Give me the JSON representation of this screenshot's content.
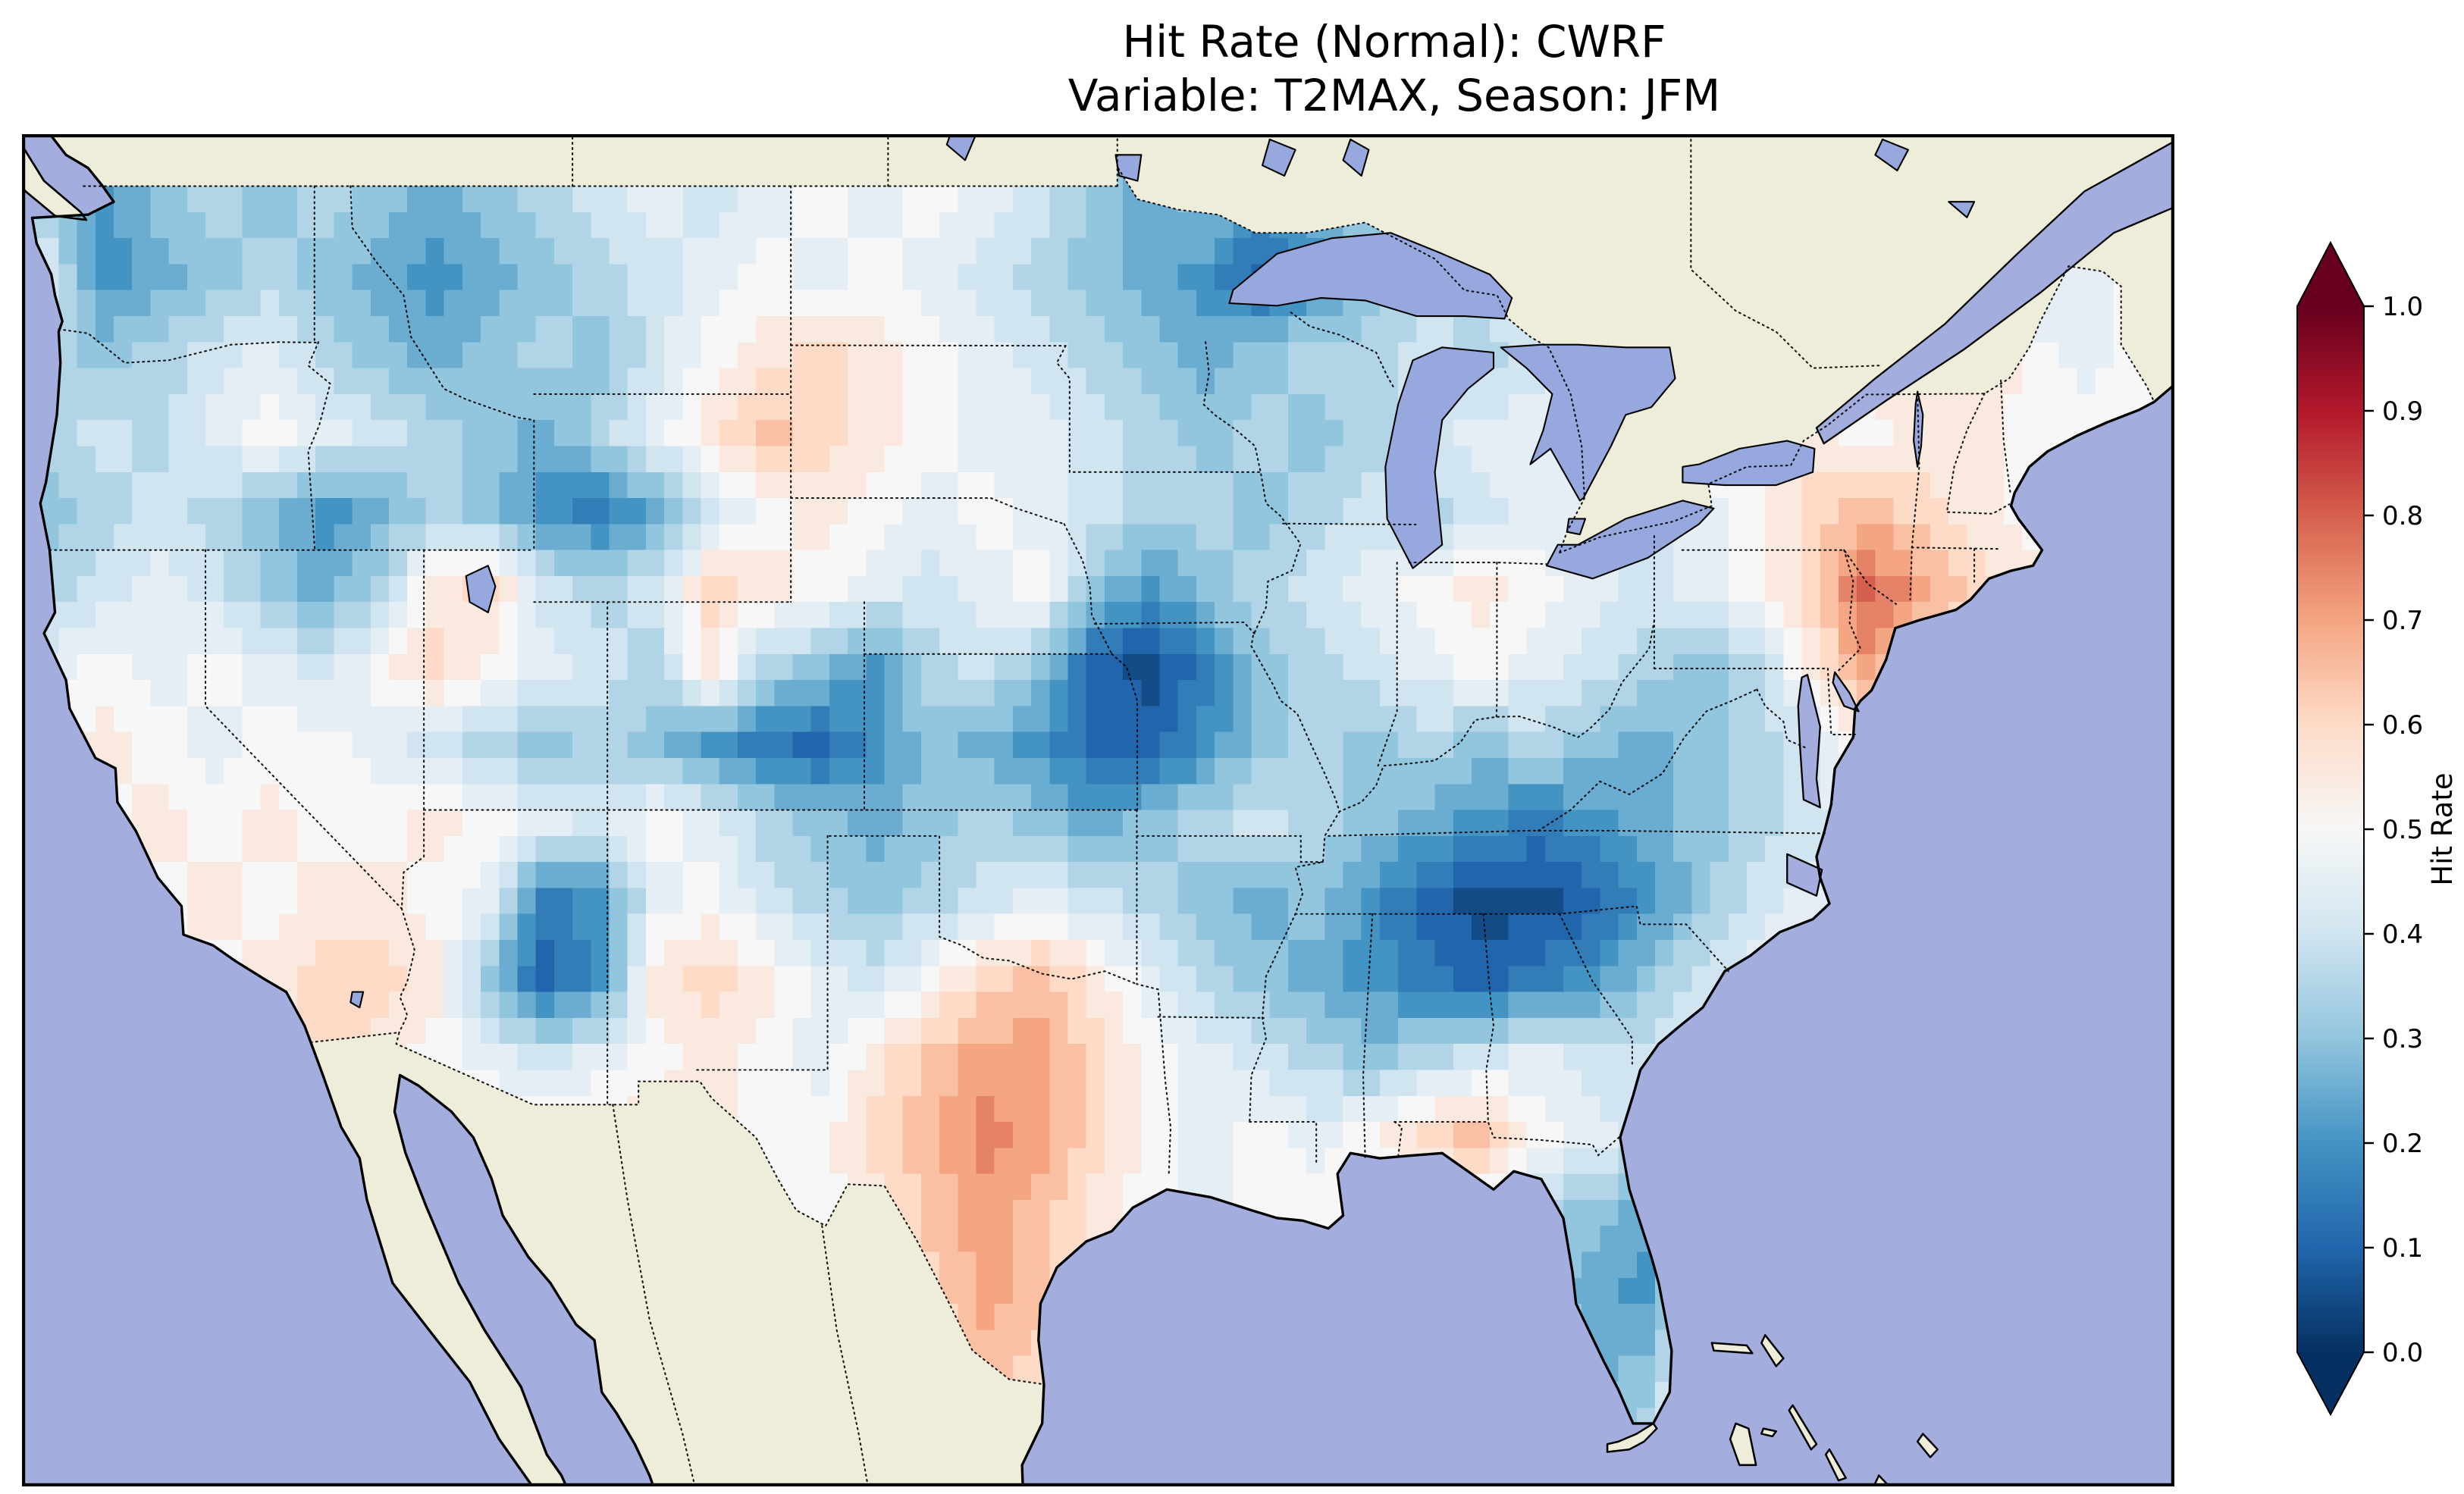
{
  "figure": {
    "title_line1": "Hit Rate (Normal): CWRF",
    "title_line2": "Variable: T2MAX, Season: JFM"
  },
  "map": {
    "ocean_color": "#a3aede",
    "lake_color": "#96a8dd",
    "land_color": "#eeedda",
    "coastline_color": "#000000",
    "state_border_style": "dotted",
    "extent": {
      "lon_min": -125.0,
      "lon_max": -66.35,
      "lat_min": 24.0,
      "lat_max": 50.0
    }
  },
  "colorbar": {
    "label": "Hit Rate",
    "orientation": "vertical",
    "extend": "both",
    "colormap": "RdBu_r",
    "tick_labels": [
      "0.0",
      "0.1",
      "0.2",
      "0.3",
      "0.4",
      "0.5",
      "0.6",
      "0.7",
      "0.8",
      "0.9",
      "1.0"
    ],
    "tick_values": [
      0.0,
      0.1,
      0.2,
      0.3,
      0.4,
      0.5,
      0.6,
      0.7,
      0.8,
      0.9,
      1.0
    ],
    "colormap_stops": [
      {
        "t": 0.0,
        "color": "#053061"
      },
      {
        "t": 0.1,
        "color": "#2166ac"
      },
      {
        "t": 0.2,
        "color": "#4393c3"
      },
      {
        "t": 0.3,
        "color": "#92c5de"
      },
      {
        "t": 0.4,
        "color": "#d1e5f0"
      },
      {
        "t": 0.5,
        "color": "#f7f7f7"
      },
      {
        "t": 0.6,
        "color": "#fddbc7"
      },
      {
        "t": 0.7,
        "color": "#f4a582"
      },
      {
        "t": 0.8,
        "color": "#d6604d"
      },
      {
        "t": 0.9,
        "color": "#b2182b"
      },
      {
        "t": 1.0,
        "color": "#67001f"
      }
    ]
  },
  "chart_data": {
    "type": "heatmap",
    "title": "Hit Rate (Normal): CWRF",
    "subtitle": "Variable: T2MAX, Season: JFM",
    "model": "CWRF",
    "variable": "T2MAX",
    "season": "JFM",
    "metric": "Hit Rate",
    "region": "Contiguous United States",
    "value_range": [
      0.0,
      1.0
    ],
    "legend_position": "right",
    "grid": {
      "lon_start": -125.0,
      "lon_step": 1.5,
      "lat_start": 51.0,
      "lat_step": -1.5,
      "cols": 40,
      "rows": 18,
      "values": [
        [
          0.35,
          0.2,
          0.3,
          0.35,
          0.3,
          0.35,
          0.3,
          0.25,
          0.3,
          0.35,
          0.4,
          0.45,
          0.4,
          0.45,
          0.5,
          0.45,
          0.5,
          0.45,
          0.4,
          0.3,
          0.25,
          0.3,
          0.2,
          0.25,
          0.3,
          0.3,
          0.35,
          0.4,
          0.45,
          0.5,
          0.5,
          0.5,
          0.5,
          0.5,
          0.55,
          0.5,
          0.45,
          0.45,
          0.5,
          0.5
        ],
        [
          0.35,
          0.2,
          0.3,
          0.35,
          0.3,
          0.35,
          0.3,
          0.25,
          0.3,
          0.35,
          0.4,
          0.45,
          0.4,
          0.45,
          0.5,
          0.45,
          0.5,
          0.45,
          0.4,
          0.3,
          0.25,
          0.3,
          0.2,
          0.25,
          0.3,
          0.3,
          0.35,
          0.4,
          0.45,
          0.5,
          0.5,
          0.5,
          0.5,
          0.5,
          0.55,
          0.5,
          0.45,
          0.45,
          0.5,
          0.5
        ],
        [
          0.4,
          0.2,
          0.25,
          0.3,
          0.35,
          0.3,
          0.25,
          0.2,
          0.25,
          0.3,
          0.35,
          0.4,
          0.45,
          0.5,
          0.45,
          0.5,
          0.45,
          0.4,
          0.35,
          0.3,
          0.25,
          0.2,
          0.1,
          0.2,
          0.3,
          0.35,
          0.4,
          0.4,
          0.45,
          0.5,
          0.5,
          0.5,
          0.55,
          0.55,
          0.5,
          0.45,
          0.4,
          0.45,
          0.5,
          0.5
        ],
        [
          0.35,
          0.3,
          0.35,
          0.4,
          0.45,
          0.35,
          0.3,
          0.25,
          0.3,
          0.35,
          0.3,
          0.4,
          0.5,
          0.55,
          0.6,
          0.55,
          0.5,
          0.45,
          0.4,
          0.35,
          0.3,
          0.25,
          0.3,
          0.35,
          0.35,
          0.4,
          0.35,
          0.4,
          0.45,
          0.5,
          0.5,
          0.5,
          0.5,
          0.55,
          0.55,
          0.6,
          0.5,
          0.45,
          0.5,
          0.5
        ],
        [
          0.35,
          0.4,
          0.35,
          0.45,
          0.5,
          0.45,
          0.4,
          0.35,
          0.3,
          0.25,
          0.35,
          0.45,
          0.55,
          0.65,
          0.6,
          0.55,
          0.5,
          0.45,
          0.45,
          0.4,
          0.35,
          0.3,
          0.35,
          0.3,
          0.35,
          0.4,
          0.45,
          0.45,
          0.5,
          0.5,
          0.5,
          0.55,
          0.55,
          0.5,
          0.55,
          0.55,
          0.5,
          0.5,
          0.5,
          0.5
        ],
        [
          0.3,
          0.35,
          0.4,
          0.35,
          0.3,
          0.2,
          0.25,
          0.35,
          0.3,
          0.2,
          0.15,
          0.25,
          0.4,
          0.5,
          0.55,
          0.5,
          0.45,
          0.5,
          0.45,
          0.4,
          0.35,
          0.35,
          0.3,
          0.35,
          0.4,
          0.35,
          0.4,
          0.45,
          0.45,
          0.4,
          0.45,
          0.5,
          0.6,
          0.65,
          0.6,
          0.55,
          0.5,
          0.5,
          0.5,
          0.5
        ],
        [
          0.35,
          0.4,
          0.45,
          0.4,
          0.3,
          0.25,
          0.35,
          0.55,
          0.6,
          0.4,
          0.35,
          0.4,
          0.6,
          0.55,
          0.5,
          0.45,
          0.4,
          0.45,
          0.5,
          0.3,
          0.2,
          0.3,
          0.35,
          0.4,
          0.45,
          0.5,
          0.55,
          0.5,
          0.45,
          0.4,
          0.45,
          0.5,
          0.6,
          0.8,
          0.7,
          0.6,
          0.55,
          0.5,
          0.5,
          0.5
        ],
        [
          0.45,
          0.5,
          0.45,
          0.5,
          0.45,
          0.4,
          0.5,
          0.6,
          0.5,
          0.45,
          0.4,
          0.35,
          0.55,
          0.35,
          0.3,
          0.2,
          0.35,
          0.4,
          0.3,
          0.1,
          0.05,
          0.15,
          0.3,
          0.35,
          0.4,
          0.45,
          0.5,
          0.45,
          0.4,
          0.35,
          0.3,
          0.35,
          0.55,
          0.7,
          0.6,
          0.55,
          0.5,
          0.5,
          0.5,
          0.5
        ],
        [
          0.5,
          0.55,
          0.5,
          0.45,
          0.5,
          0.5,
          0.45,
          0.4,
          0.35,
          0.3,
          0.35,
          0.3,
          0.2,
          0.15,
          0.1,
          0.2,
          0.3,
          0.25,
          0.2,
          0.1,
          0.1,
          0.2,
          0.3,
          0.35,
          0.3,
          0.35,
          0.3,
          0.35,
          0.3,
          0.25,
          0.3,
          0.35,
          0.4,
          0.55,
          0.5,
          0.5,
          0.5,
          0.5,
          0.5,
          0.5
        ],
        [
          0.55,
          0.5,
          0.55,
          0.5,
          0.55,
          0.5,
          0.5,
          0.55,
          0.5,
          0.45,
          0.4,
          0.5,
          0.45,
          0.35,
          0.3,
          0.25,
          0.3,
          0.35,
          0.3,
          0.25,
          0.3,
          0.35,
          0.4,
          0.35,
          0.3,
          0.25,
          0.2,
          0.15,
          0.2,
          0.25,
          0.3,
          0.35,
          0.4,
          0.45,
          0.5,
          0.5,
          0.5,
          0.5,
          0.5,
          0.5
        ],
        [
          0.55,
          0.55,
          0.5,
          0.55,
          0.5,
          0.55,
          0.55,
          0.5,
          0.45,
          0.15,
          0.2,
          0.45,
          0.5,
          0.4,
          0.35,
          0.3,
          0.35,
          0.4,
          0.45,
          0.4,
          0.35,
          0.3,
          0.25,
          0.3,
          0.2,
          0.1,
          0.05,
          0.05,
          0.1,
          0.2,
          0.3,
          0.4,
          0.45,
          0.5,
          0.5,
          0.5,
          0.5,
          0.5,
          0.5,
          0.5
        ],
        [
          0.55,
          0.55,
          0.55,
          0.5,
          0.55,
          0.6,
          0.6,
          0.55,
          0.3,
          0.1,
          0.2,
          0.55,
          0.6,
          0.55,
          0.45,
          0.4,
          0.5,
          0.6,
          0.65,
          0.55,
          0.45,
          0.35,
          0.3,
          0.25,
          0.2,
          0.15,
          0.1,
          0.15,
          0.2,
          0.3,
          0.4,
          0.45,
          0.5,
          0.5,
          0.5,
          0.5,
          0.5,
          0.5,
          0.5,
          0.5
        ],
        [
          0.55,
          0.55,
          0.55,
          0.55,
          0.55,
          0.6,
          0.55,
          0.5,
          0.45,
          0.4,
          0.45,
          0.5,
          0.55,
          0.5,
          0.45,
          0.55,
          0.65,
          0.7,
          0.7,
          0.6,
          0.5,
          0.45,
          0.4,
          0.35,
          0.3,
          0.35,
          0.4,
          0.45,
          0.4,
          0.4,
          0.45,
          0.5,
          0.5,
          0.5,
          0.5,
          0.5,
          0.5,
          0.5,
          0.5,
          0.5
        ],
        [
          0.55,
          0.55,
          0.55,
          0.55,
          0.55,
          0.55,
          0.55,
          0.55,
          0.55,
          0.55,
          0.55,
          0.55,
          0.55,
          0.5,
          0.5,
          0.6,
          0.65,
          0.75,
          0.7,
          0.6,
          0.5,
          0.45,
          0.5,
          0.45,
          0.5,
          0.6,
          0.65,
          0.5,
          0.45,
          0.4,
          0.5,
          0.5,
          0.5,
          0.5,
          0.5,
          0.5,
          0.5,
          0.5,
          0.5,
          0.5
        ],
        [
          0.55,
          0.55,
          0.55,
          0.55,
          0.55,
          0.55,
          0.55,
          0.55,
          0.55,
          0.55,
          0.55,
          0.55,
          0.55,
          0.55,
          0.5,
          0.55,
          0.65,
          0.7,
          0.65,
          0.55,
          0.5,
          0.45,
          0.5,
          0.5,
          0.5,
          0.5,
          0.45,
          0.35,
          0.3,
          0.25,
          0.5,
          0.5,
          0.5,
          0.5,
          0.5,
          0.5,
          0.5,
          0.5,
          0.5,
          0.5
        ],
        [
          0.55,
          0.55,
          0.55,
          0.55,
          0.55,
          0.55,
          0.55,
          0.55,
          0.55,
          0.55,
          0.55,
          0.55,
          0.55,
          0.55,
          0.55,
          0.55,
          0.6,
          0.7,
          0.65,
          0.55,
          0.5,
          0.5,
          0.5,
          0.5,
          0.5,
          0.5,
          0.5,
          0.3,
          0.25,
          0.2,
          0.5,
          0.5,
          0.5,
          0.5,
          0.5,
          0.5,
          0.5,
          0.5,
          0.5,
          0.5
        ],
        [
          0.55,
          0.55,
          0.55,
          0.55,
          0.55,
          0.55,
          0.55,
          0.55,
          0.55,
          0.55,
          0.55,
          0.55,
          0.55,
          0.55,
          0.55,
          0.55,
          0.55,
          0.65,
          0.6,
          0.55,
          0.5,
          0.5,
          0.5,
          0.5,
          0.5,
          0.5,
          0.5,
          0.5,
          0.25,
          0.3,
          0.5,
          0.5,
          0.5,
          0.5,
          0.5,
          0.5,
          0.5,
          0.5,
          0.5,
          0.5
        ],
        [
          0.5,
          0.5,
          0.5,
          0.5,
          0.5,
          0.5,
          0.5,
          0.5,
          0.5,
          0.5,
          0.5,
          0.5,
          0.5,
          0.5,
          0.5,
          0.5,
          0.5,
          0.55,
          0.55,
          0.5,
          0.5,
          0.5,
          0.5,
          0.5,
          0.5,
          0.5,
          0.5,
          0.5,
          0.3,
          0.35,
          0.5,
          0.5,
          0.5,
          0.5,
          0.5,
          0.5,
          0.5,
          0.5,
          0.5,
          0.5
        ]
      ]
    }
  }
}
